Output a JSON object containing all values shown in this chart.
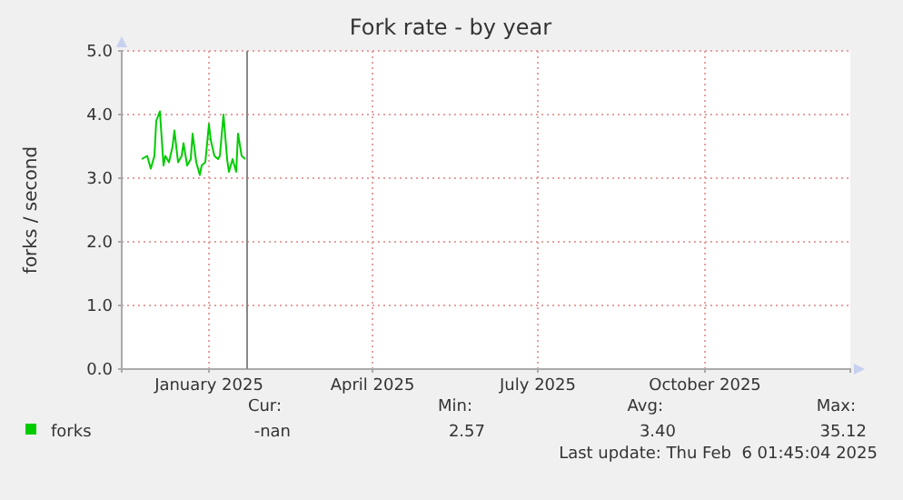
{
  "chart_data": {
    "type": "line",
    "title": "Fork rate - by year",
    "ylabel": "forks / second",
    "x": [
      "2024-11-25",
      "2024-11-28",
      "2024-11-30",
      "2024-12-02",
      "2024-12-03",
      "2024-12-05",
      "2024-12-07",
      "2024-12-08",
      "2024-12-10",
      "2024-12-12",
      "2024-12-13",
      "2024-12-15",
      "2024-12-17",
      "2024-12-18",
      "2024-12-20",
      "2024-12-22",
      "2024-12-23",
      "2024-12-25",
      "2024-12-27",
      "2024-12-28",
      "2024-12-30",
      "2025-01-01",
      "2025-01-02",
      "2025-01-04",
      "2025-01-06",
      "2025-01-07",
      "2025-01-09",
      "2025-01-11",
      "2025-01-12",
      "2025-01-14",
      "2025-01-16",
      "2025-01-17",
      "2025-01-19",
      "2025-01-21"
    ],
    "series": [
      {
        "name": "forks",
        "color": "#00cc00",
        "values": [
          3.3,
          3.35,
          3.15,
          3.35,
          3.9,
          4.05,
          3.2,
          3.35,
          3.25,
          3.5,
          3.75,
          3.25,
          3.35,
          3.55,
          3.2,
          3.3,
          3.7,
          3.25,
          3.05,
          3.2,
          3.25,
          3.85,
          3.6,
          3.35,
          3.3,
          3.35,
          4.0,
          3.3,
          3.1,
          3.3,
          3.1,
          3.7,
          3.35,
          3.3
        ]
      }
    ],
    "xlim": [
      "2024-11-14",
      "2025-12-20"
    ],
    "xticks": [
      {
        "value": "2025-01-01",
        "label": "January 2025"
      },
      {
        "value": "2025-04-01",
        "label": "April 2025"
      },
      {
        "value": "2025-07-01",
        "label": "July 2025"
      },
      {
        "value": "2025-10-01",
        "label": "October 2025"
      }
    ],
    "ylim": [
      0,
      5
    ],
    "yticks": [
      {
        "value": 0,
        "label": "0.0"
      },
      {
        "value": 1,
        "label": "1.0"
      },
      {
        "value": 2,
        "label": "2.0"
      },
      {
        "value": 3,
        "label": "3.0"
      },
      {
        "value": 4,
        "label": "4.0"
      },
      {
        "value": 5,
        "label": "5.0"
      }
    ],
    "ref_lines": [
      {
        "axis": "x",
        "value": "2025-01-22",
        "label": null,
        "color": "#888888"
      }
    ],
    "grid": true,
    "legend": "bottom",
    "annotations": [
      "Cur:",
      "Min:",
      "Avg:",
      "Max:",
      "-nan",
      "2.57",
      "3.40",
      "35.12",
      "Last update: Thu Feb  6 01:45:04 2025"
    ]
  }
}
